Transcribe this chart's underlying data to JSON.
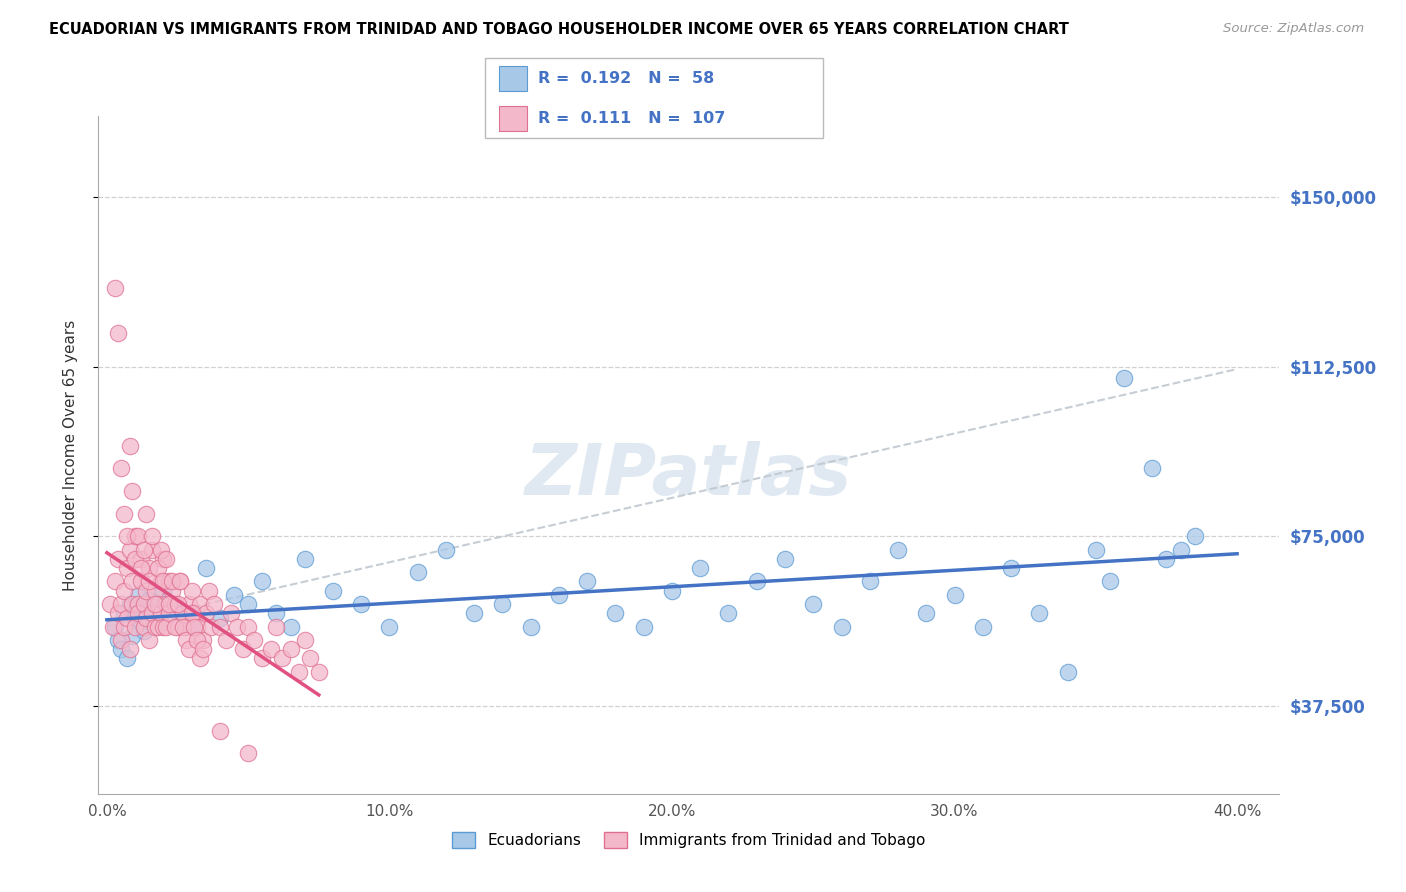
{
  "title": "ECUADORIAN VS IMMIGRANTS FROM TRINIDAD AND TOBAGO HOUSEHOLDER INCOME OVER 65 YEARS CORRELATION CHART",
  "source": "Source: ZipAtlas.com",
  "ylabel": "Householder Income Over 65 years",
  "xlim": [
    -0.003,
    0.415
  ],
  "ylim": [
    18000,
    168000
  ],
  "ytick_labels": [
    "$37,500",
    "$75,000",
    "$112,500",
    "$150,000"
  ],
  "ytick_values": [
    37500,
    75000,
    112500,
    150000
  ],
  "xtick_labels": [
    "0.0%",
    "10.0%",
    "20.0%",
    "30.0%",
    "40.0%"
  ],
  "xtick_values": [
    0.0,
    0.1,
    0.2,
    0.3,
    0.4
  ],
  "blue_R": "0.192",
  "blue_N": "58",
  "pink_R": "0.111",
  "pink_N": "107",
  "blue_fill": "#a8c8e8",
  "blue_edge": "#5b9bd5",
  "pink_fill": "#f4b8cb",
  "pink_edge": "#e07090",
  "blue_trend_color": "#4472c4",
  "pink_trend_color": "#e05080",
  "dashed_line_color": "#c0c8d0",
  "blue_label": "Ecuadorians",
  "pink_label": "Immigrants from Trinidad and Tobago",
  "blue_x": [
    0.003,
    0.004,
    0.005,
    0.006,
    0.007,
    0.008,
    0.009,
    0.01,
    0.011,
    0.012,
    0.013,
    0.014,
    0.015,
    0.02,
    0.025,
    0.03,
    0.035,
    0.04,
    0.045,
    0.05,
    0.055,
    0.06,
    0.065,
    0.07,
    0.08,
    0.09,
    0.1,
    0.11,
    0.12,
    0.13,
    0.14,
    0.15,
    0.16,
    0.17,
    0.18,
    0.19,
    0.2,
    0.21,
    0.22,
    0.23,
    0.24,
    0.25,
    0.26,
    0.27,
    0.28,
    0.29,
    0.3,
    0.31,
    0.32,
    0.33,
    0.34,
    0.35,
    0.355,
    0.36,
    0.37,
    0.375,
    0.38,
    0.385
  ],
  "blue_y": [
    55000,
    52000,
    50000,
    58000,
    48000,
    60000,
    53000,
    57000,
    62000,
    56000,
    54000,
    59000,
    61000,
    63000,
    58000,
    55000,
    68000,
    57000,
    62000,
    60000,
    65000,
    58000,
    55000,
    70000,
    63000,
    60000,
    55000,
    67000,
    72000,
    58000,
    60000,
    55000,
    62000,
    65000,
    58000,
    55000,
    63000,
    68000,
    58000,
    65000,
    70000,
    60000,
    55000,
    65000,
    72000,
    58000,
    62000,
    55000,
    68000,
    58000,
    45000,
    72000,
    65000,
    110000,
    90000,
    70000,
    72000,
    75000
  ],
  "pink_x": [
    0.001,
    0.002,
    0.003,
    0.004,
    0.004,
    0.005,
    0.005,
    0.006,
    0.006,
    0.007,
    0.007,
    0.008,
    0.008,
    0.009,
    0.009,
    0.01,
    0.01,
    0.011,
    0.011,
    0.012,
    0.012,
    0.013,
    0.013,
    0.014,
    0.014,
    0.015,
    0.015,
    0.016,
    0.016,
    0.017,
    0.017,
    0.018,
    0.018,
    0.019,
    0.019,
    0.02,
    0.02,
    0.021,
    0.021,
    0.022,
    0.022,
    0.023,
    0.024,
    0.025,
    0.026,
    0.027,
    0.028,
    0.029,
    0.03,
    0.031,
    0.032,
    0.033,
    0.034,
    0.035,
    0.036,
    0.037,
    0.038,
    0.04,
    0.042,
    0.044,
    0.046,
    0.048,
    0.05,
    0.052,
    0.055,
    0.058,
    0.06,
    0.062,
    0.065,
    0.068,
    0.07,
    0.072,
    0.075,
    0.003,
    0.004,
    0.005,
    0.006,
    0.007,
    0.008,
    0.009,
    0.01,
    0.011,
    0.012,
    0.013,
    0.014,
    0.015,
    0.016,
    0.017,
    0.018,
    0.019,
    0.02,
    0.021,
    0.022,
    0.023,
    0.024,
    0.025,
    0.026,
    0.027,
    0.028,
    0.029,
    0.03,
    0.031,
    0.032,
    0.033,
    0.034,
    0.04,
    0.05
  ],
  "pink_y": [
    60000,
    55000,
    65000,
    70000,
    58000,
    60000,
    52000,
    63000,
    55000,
    68000,
    57000,
    72000,
    50000,
    60000,
    65000,
    55000,
    75000,
    60000,
    58000,
    65000,
    70000,
    55000,
    60000,
    63000,
    57000,
    68000,
    52000,
    58000,
    72000,
    55000,
    63000,
    60000,
    55000,
    58000,
    65000,
    55000,
    70000,
    60000,
    55000,
    58000,
    65000,
    63000,
    60000,
    55000,
    65000,
    58000,
    55000,
    60000,
    63000,
    58000,
    55000,
    60000,
    52000,
    58000,
    63000,
    55000,
    60000,
    55000,
    52000,
    58000,
    55000,
    50000,
    55000,
    52000,
    48000,
    50000,
    55000,
    48000,
    50000,
    45000,
    52000,
    48000,
    45000,
    130000,
    120000,
    90000,
    80000,
    75000,
    95000,
    85000,
    70000,
    75000,
    68000,
    72000,
    80000,
    65000,
    75000,
    60000,
    68000,
    72000,
    65000,
    70000,
    60000,
    65000,
    55000,
    60000,
    65000,
    55000,
    52000,
    50000,
    58000,
    55000,
    52000,
    48000,
    50000,
    32000,
    27000
  ]
}
